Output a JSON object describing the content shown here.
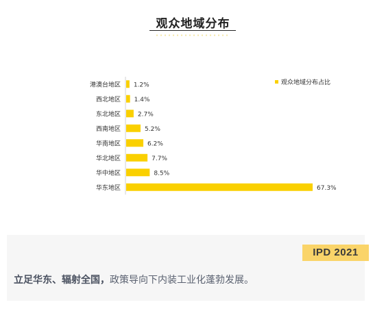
{
  "page": {
    "title": "观众地域分布",
    "badge": "IPD 2021",
    "caption_bold": "立足华东、辐射全国，",
    "caption_rest": "政策导向下内装工业化蓬勃发展。"
  },
  "colors": {
    "bar": "#fad000",
    "badge_bg": "#fad469",
    "caption_bg": "#f6f6f6",
    "axis": "#d0d0d0"
  },
  "chart_data": {
    "type": "bar",
    "orientation": "horizontal",
    "title": "观众地域分布",
    "categories": [
      "港澳台地区",
      "西北地区",
      "东北地区",
      "西南地区",
      "华南地区",
      "华北地区",
      "华中地区",
      "华东地区"
    ],
    "series": [
      {
        "name": "观众地域分布占比",
        "values": [
          1.2,
          1.4,
          2.7,
          5.2,
          6.2,
          7.7,
          8.5,
          67.3
        ],
        "labels": [
          "1.2%",
          "1.4%",
          "2.7%",
          "5.2%",
          "6.2%",
          "7.7%",
          "8.5%",
          "67.3%"
        ]
      }
    ],
    "xlim": [
      0,
      67.3
    ],
    "grid": false,
    "legend": "top-right"
  }
}
